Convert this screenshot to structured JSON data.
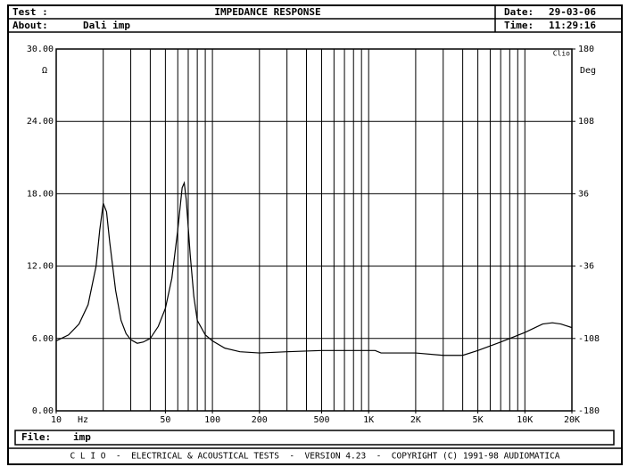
{
  "header": {
    "test_label": "Test :",
    "title": "IMPEDANCE RESPONSE",
    "about_label": "About:",
    "about": "Dali imp",
    "date_label": "Date:",
    "date": "29-03-06",
    "time_label": "Time:",
    "time": "11:29:16"
  },
  "footer": {
    "file_label": "File:",
    "file": "imp",
    "credits": "C L I O  -  ELECTRICAL & ACOUSTICAL TESTS  -  VERSION 4.23  -  COPYRIGHT (C) 1991-98 AUDIOMATICA"
  },
  "chart_data": {
    "type": "line",
    "color": "#000000",
    "log_x": true,
    "grid": true,
    "brand": "Clio",
    "x_label": "Hz",
    "y_label": "Ω",
    "y2_label": "Deg",
    "x": [
      10,
      12,
      14,
      16,
      18,
      19,
      20,
      21,
      22,
      24,
      26,
      28,
      30,
      33,
      36,
      40,
      45,
      50,
      55,
      60,
      64,
      66,
      68,
      72,
      76,
      80,
      90,
      100,
      120,
      150,
      200,
      300,
      500,
      1000,
      1100,
      1200,
      2000,
      3000,
      4000,
      5000,
      7000,
      10000,
      13000,
      15000,
      17000,
      20000
    ],
    "values": [
      5.8,
      6.3,
      7.2,
      8.8,
      12,
      15,
      17.2,
      16.5,
      14,
      10,
      7.5,
      6.4,
      5.9,
      5.6,
      5.7,
      6.0,
      7.0,
      8.5,
      11,
      15,
      18.5,
      18.9,
      17.5,
      13,
      9.5,
      7.5,
      6.3,
      5.8,
      5.2,
      4.9,
      4.8,
      4.9,
      5.0,
      5.0,
      5.0,
      4.8,
      4.8,
      4.6,
      4.6,
      5.0,
      5.7,
      6.5,
      7.2,
      7.3,
      7.2,
      6.9
    ],
    "xlim": [
      10,
      20000
    ],
    "xticks": [
      10,
      50,
      100,
      200,
      500,
      {
        "value": 1000,
        "label": "1K"
      },
      {
        "value": 2000,
        "label": "2K"
      },
      {
        "value": 5000,
        "label": "5K"
      },
      {
        "value": 10000,
        "label": "10K"
      },
      {
        "value": 20000,
        "label": "20K"
      }
    ],
    "xgrid": [
      20,
      30,
      40,
      50,
      60,
      70,
      80,
      90,
      100,
      200,
      300,
      400,
      500,
      600,
      700,
      800,
      900,
      1000,
      2000,
      3000,
      4000,
      5000,
      6000,
      7000,
      8000,
      9000,
      10000
    ],
    "ylim": [
      0,
      30
    ],
    "yticks": [
      {
        "value": 0,
        "label": "0.00"
      },
      {
        "value": 6,
        "label": "6.00"
      },
      {
        "value": 12,
        "label": "12.00"
      },
      {
        "value": 18,
        "label": "18.00"
      },
      {
        "value": 24,
        "label": "24.00"
      },
      {
        "value": 30,
        "label": "30.00"
      }
    ],
    "y2lim": [
      -180,
      180
    ],
    "y2ticks": [
      -180,
      -108,
      -36,
      36,
      108,
      180
    ]
  }
}
